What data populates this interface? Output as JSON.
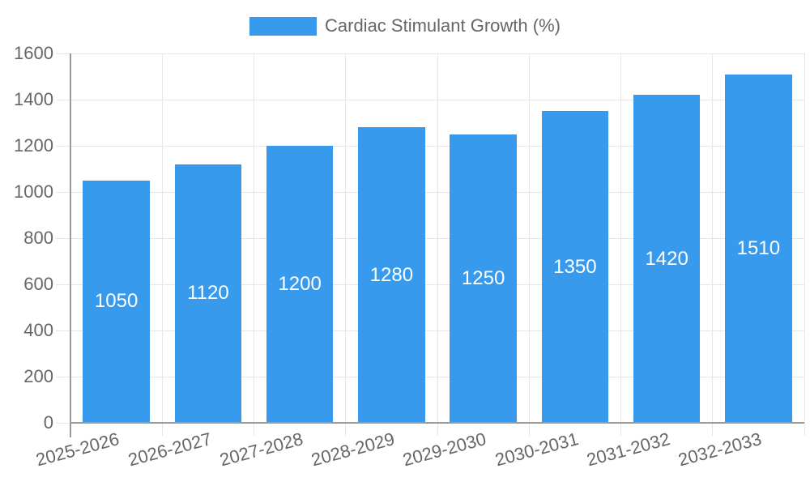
{
  "legend": {
    "label": "Cardiac Stimulant Growth (%)"
  },
  "colors": {
    "bar": "#389aec",
    "value_label": "#ffffff",
    "grid_line": "#e6e6e6",
    "axis_line": "#9a9a9a",
    "tick_label": "#666666",
    "legend_label": "#666666",
    "background": "#ffffff"
  },
  "chart_data": {
    "type": "bar",
    "title": "Cardiac Stimulant Growth (%)",
    "series_name": "Cardiac Stimulant Growth (%)",
    "categories": [
      "2025-2026",
      "2026-2027",
      "2027-2028",
      "2028-2029",
      "2029-2030",
      "2030-2031",
      "2031-2032",
      "2032-2033"
    ],
    "values": [
      1050,
      1120,
      1200,
      1280,
      1250,
      1350,
      1420,
      1510
    ],
    "xlabel": "",
    "ylabel": "",
    "ylim": [
      0,
      1600
    ],
    "ytick_step": 200,
    "ytick_labels": [
      "0",
      "200",
      "400",
      "600",
      "800",
      "1000",
      "1200",
      "1400",
      "1600"
    ],
    "grid": true,
    "legend_position": "top-center",
    "value_labels": "inside-center-white",
    "x_tick_rotation_deg": -15
  }
}
